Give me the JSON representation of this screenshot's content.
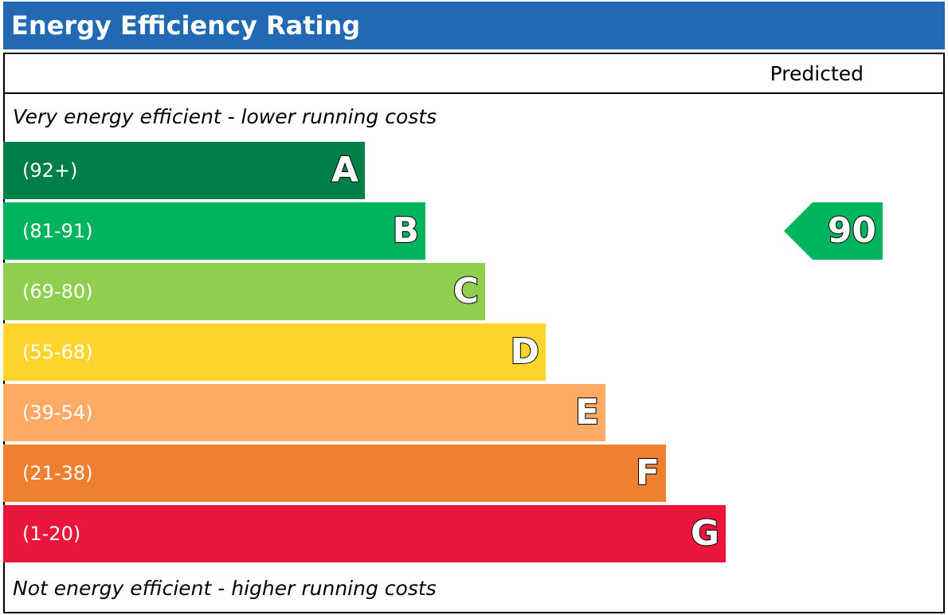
{
  "title": "Energy Efficiency Rating",
  "column_label": "Predicted",
  "top_note": "Very energy efficient - lower running costs",
  "bottom_note": "Not energy efficient - higher running costs",
  "bands": [
    {
      "letter": "A",
      "range": "(92+)",
      "color": "#007f49"
    },
    {
      "letter": "B",
      "range": "(81-91)",
      "color": "#00b45f"
    },
    {
      "letter": "C",
      "range": "(69-80)",
      "color": "#8fce4f"
    },
    {
      "letter": "D",
      "range": "(55-68)",
      "color": "#ffd42d"
    },
    {
      "letter": "E",
      "range": "(39-54)",
      "color": "#fcaa65"
    },
    {
      "letter": "F",
      "range": "(21-38)",
      "color": "#ef8030"
    },
    {
      "letter": "G",
      "range": "(1-20)",
      "color": "#e9153b"
    }
  ],
  "chart_data": {
    "type": "bar",
    "title": "Energy Efficiency Rating",
    "categories": [
      "A",
      "B",
      "C",
      "D",
      "E",
      "F",
      "G"
    ],
    "category_labels": [
      "(92+)",
      "(81-91)",
      "(69-80)",
      "(55-68)",
      "(39-54)",
      "(21-38)",
      "(1-20)"
    ],
    "series": [
      {
        "name": "Predicted",
        "value": 90,
        "band": "B",
        "color": "#00b45f"
      }
    ]
  }
}
